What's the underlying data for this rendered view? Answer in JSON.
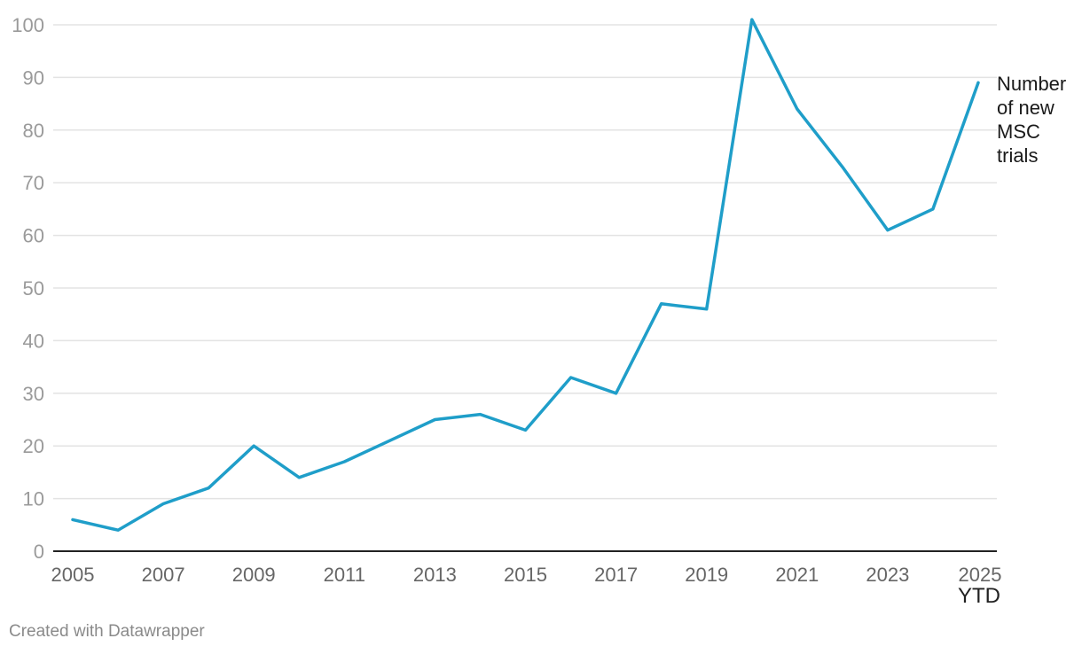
{
  "chart_data": {
    "type": "line",
    "x": [
      2005,
      2006,
      2007,
      2008,
      2009,
      2010,
      2011,
      2012,
      2013,
      2014,
      2015,
      2016,
      2017,
      2018,
      2019,
      2020,
      2021,
      2022,
      2023,
      2024,
      2025
    ],
    "series": [
      {
        "name": "Number of new MSC trials",
        "name_lines": [
          "Number",
          "of new",
          "MSC",
          "trials"
        ],
        "values": [
          6,
          4,
          9,
          12,
          20,
          14,
          17,
          21,
          25,
          26,
          23,
          33,
          30,
          47,
          46,
          101,
          84,
          73,
          61,
          65,
          89
        ],
        "color": "#1f9ec9"
      }
    ],
    "x_tick_labels": [
      "2005",
      "2007",
      "2009",
      "2011",
      "2013",
      "2015",
      "2017",
      "2019",
      "2021",
      "2023",
      "2025"
    ],
    "x_tick_values": [
      2005,
      2007,
      2009,
      2011,
      2013,
      2015,
      2017,
      2019,
      2021,
      2023,
      2025
    ],
    "x_tick_sub_label": "YTD",
    "y_ticks": [
      0,
      10,
      20,
      30,
      40,
      50,
      60,
      70,
      80,
      90,
      100
    ],
    "ylim": [
      0,
      100
    ],
    "xlim": [
      2005,
      2025
    ],
    "grid": true,
    "title": "",
    "xlabel": "",
    "ylabel": ""
  },
  "credit": "Created with Datawrapper"
}
